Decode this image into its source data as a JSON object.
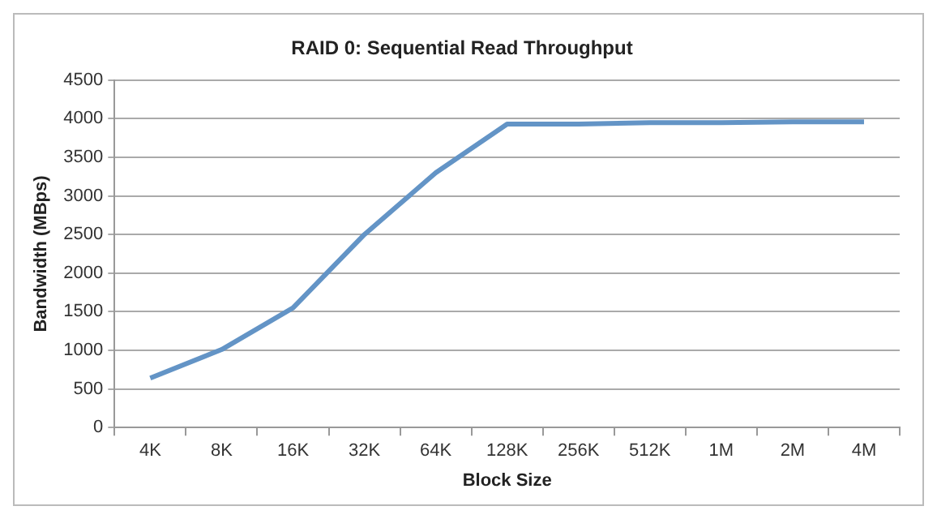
{
  "chart_data": {
    "type": "line",
    "title": "RAID 0: Sequential Read Throughput",
    "xlabel": "Block Size",
    "ylabel": "Bandwidth (MBps)",
    "categories": [
      "4K",
      "8K",
      "16K",
      "32K",
      "64K",
      "128K",
      "256K",
      "512K",
      "1M",
      "2M",
      "4M"
    ],
    "series": [
      {
        "color": "#6394c6",
        "values": [
          640,
          1010,
          1550,
          2500,
          3300,
          3930,
          3930,
          3950,
          3950,
          3960,
          3960
        ]
      }
    ],
    "ylim": [
      0,
      4500
    ],
    "yticks": [
      0,
      500,
      1000,
      1500,
      2000,
      2500,
      3000,
      3500,
      4000,
      4500
    ],
    "grid": "y",
    "legend": false,
    "marker": "none",
    "line_style": "solid"
  }
}
